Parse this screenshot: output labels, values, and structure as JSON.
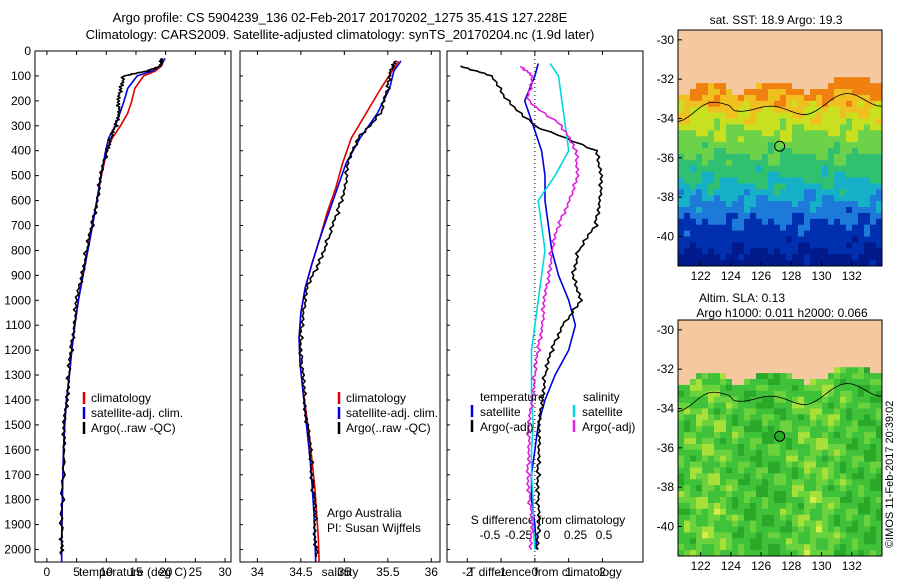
{
  "header": {
    "line1": "Argo profile: CS 5904239_136 02-Feb-2017 20170202_1275 35.41S 127.228E",
    "line2": "Climatology: CARS2009. Satellite-adjusted climatology: synTS_20170204.nc (1.9d later)"
  },
  "footer": {
    "vertical_label": "©IMOS 11-Feb-2017 20:39:02"
  },
  "colors": {
    "climatology": "#e00000",
    "satellite": "#0000e0",
    "argo": "#000000",
    "sal_satellite": "#00d8e0",
    "sal_argo": "#e020e0",
    "land": "#f5c8a0"
  },
  "chart_data": [
    {
      "type": "line",
      "title": "",
      "xlabel": "temperature (deg C)",
      "ylabel": "",
      "xlim": [
        -2,
        31
      ],
      "ylim": [
        2050,
        0
      ],
      "xticks": [
        0,
        5,
        10,
        15,
        20,
        25,
        30
      ],
      "yticks": [
        0,
        100,
        200,
        300,
        400,
        500,
        600,
        700,
        800,
        900,
        1000,
        1100,
        1200,
        1300,
        1400,
        1500,
        1600,
        1700,
        1800,
        1900,
        2000
      ],
      "legend": [
        "climatology",
        "satellite-adj. clim.",
        "Argo(..raw -QC)"
      ],
      "legend_position": "lower-center",
      "series": [
        {
          "name": "climatology",
          "color": "#e00000",
          "x": [
            19.8,
            19.3,
            18.3,
            16.3,
            14.8,
            14.3,
            13.6,
            12.4,
            11.0,
            10.1,
            9.2,
            8.4,
            7.6,
            6.8,
            6.0,
            5.3,
            4.7,
            4.2,
            3.8,
            3.3,
            3.0,
            2.8,
            2.6,
            2.5,
            2.5
          ],
          "y": [
            30,
            60,
            80,
            100,
            150,
            200,
            250,
            300,
            350,
            400,
            500,
            600,
            700,
            800,
            900,
            1000,
            1100,
            1200,
            1300,
            1400,
            1500,
            1600,
            1800,
            1950,
            2050
          ]
        },
        {
          "name": "satellite-adj. clim.",
          "color": "#0000e0",
          "x": [
            19.9,
            19.1,
            17.8,
            15.2,
            13.6,
            13.0,
            12.3,
            11.5,
            10.4,
            9.9,
            9.1,
            8.4,
            7.7,
            6.9,
            6.1,
            5.3,
            4.7,
            4.2,
            3.8,
            3.3,
            3.0,
            2.8,
            2.6,
            2.5,
            2.5
          ],
          "y": [
            30,
            60,
            80,
            100,
            150,
            200,
            250,
            300,
            350,
            400,
            500,
            600,
            700,
            800,
            900,
            1000,
            1100,
            1200,
            1300,
            1400,
            1500,
            1600,
            1800,
            1950,
            2050
          ]
        },
        {
          "name": "Argo(..raw -QC)",
          "color": "#000000",
          "x": [
            19.5,
            19.0,
            17.0,
            13.0,
            12.3,
            12.2,
            12.0,
            11.6,
            10.8,
            10.0,
            9.2,
            8.4,
            7.6,
            6.7,
            5.8,
            5.1,
            4.5,
            4.1,
            3.7,
            3.3,
            3.0,
            2.8,
            2.6,
            2.5,
            2.4
          ],
          "y": [
            30,
            60,
            80,
            100,
            150,
            200,
            250,
            300,
            350,
            400,
            500,
            600,
            700,
            800,
            900,
            1000,
            1100,
            1200,
            1300,
            1400,
            1500,
            1600,
            1800,
            1950,
            2020
          ]
        }
      ]
    },
    {
      "type": "line",
      "title": "",
      "xlabel": "salinity",
      "xlim": [
        33.8,
        36.1
      ],
      "ylim": [
        2050,
        0
      ],
      "xticks": [
        34,
        34.5,
        35,
        35.5,
        36
      ],
      "xticklabels": [
        "34",
        "34.5",
        "35",
        "35.5",
        "36"
      ],
      "legend": [
        "climatology",
        "satellite-adj. clim.",
        "Argo(..raw -QC)"
      ],
      "legend_position": "lower-center",
      "annotation": [
        "Argo Australia",
        "PI: Susan Wijffels"
      ],
      "series": [
        {
          "name": "climatology",
          "color": "#e00000",
          "x": [
            35.62,
            35.55,
            35.42,
            35.25,
            35.08,
            34.98,
            34.9,
            34.8,
            34.72,
            34.63,
            34.55,
            34.5,
            34.48,
            34.49,
            34.52,
            34.56,
            34.6,
            34.63,
            34.66,
            34.68,
            34.7,
            34.71
          ],
          "y": [
            40,
            80,
            150,
            250,
            350,
            450,
            550,
            650,
            750,
            850,
            950,
            1050,
            1150,
            1250,
            1350,
            1450,
            1550,
            1650,
            1750,
            1850,
            1950,
            2050
          ]
        },
        {
          "name": "satellite-adj. clim.",
          "color": "#0000e0",
          "x": [
            35.65,
            35.57,
            35.52,
            35.38,
            35.18,
            35.02,
            34.92,
            34.82,
            34.72,
            34.63,
            34.55,
            34.5,
            34.48,
            34.49,
            34.52,
            34.55,
            34.58,
            34.61,
            34.63,
            34.65,
            34.66,
            34.67
          ],
          "y": [
            40,
            80,
            150,
            250,
            350,
            450,
            550,
            650,
            750,
            850,
            950,
            1050,
            1150,
            1250,
            1350,
            1450,
            1550,
            1650,
            1750,
            1850,
            1950,
            2050
          ]
        },
        {
          "name": "Argo(..raw -QC)",
          "color": "#000000",
          "x": [
            35.6,
            35.52,
            35.5,
            35.42,
            35.15,
            35.05,
            35.0,
            34.92,
            34.82,
            34.7,
            34.58,
            34.52,
            34.5,
            34.51,
            34.53,
            34.56,
            34.59,
            34.62,
            34.64,
            34.66,
            34.67,
            34.68
          ],
          "y": [
            40,
            80,
            150,
            250,
            350,
            450,
            550,
            650,
            750,
            850,
            950,
            1050,
            1150,
            1250,
            1350,
            1450,
            1550,
            1650,
            1750,
            1850,
            1950,
            2030
          ]
        }
      ]
    },
    {
      "type": "line",
      "title": "",
      "xlabel": "T difference from climatology",
      "x2label": "S difference from climatology",
      "xlim": [
        -2.6,
        3.2
      ],
      "ylim": [
        2050,
        0
      ],
      "xticks": [
        -2,
        -1,
        0,
        1,
        2
      ],
      "x2ticks": [
        -0.5,
        -0.25,
        0,
        0.25,
        0.5
      ],
      "x2ticklabels": [
        "-0.5",
        "-0.25",
        "0",
        "0.25",
        "0.5"
      ],
      "legend_titles": [
        "temperature",
        "salinity"
      ],
      "legend": [
        "satellite",
        "Argo(-adj)",
        "satellite",
        "Argo(-adj)"
      ],
      "series": [
        {
          "name": "satellite",
          "group": "temperature",
          "color": "#0000e0",
          "x": [
            0.1,
            0.0,
            -0.3,
            -0.05,
            0.2,
            0.3,
            0.3,
            0.4,
            0.5,
            0.7,
            1.0,
            1.2,
            1.0,
            0.6,
            0.3,
            0.1,
            0.0,
            -0.1,
            -0.1,
            0.0,
            0.05
          ],
          "y": [
            50,
            100,
            200,
            300,
            400,
            500,
            600,
            700,
            800,
            900,
            1000,
            1100,
            1200,
            1300,
            1400,
            1500,
            1600,
            1700,
            1800,
            1900,
            2000
          ]
        },
        {
          "name": "Argo(-adj)",
          "group": "temperature",
          "color": "#000000",
          "x": [
            -2.2,
            -1.3,
            -0.8,
            0.0,
            1.8,
            2.0,
            1.9,
            1.8,
            1.3,
            1.1,
            1.4,
            0.8,
            0.5,
            0.3,
            0.2,
            0.15,
            0.1,
            0.1,
            0.1,
            0.1,
            0.1
          ],
          "y": [
            60,
            100,
            200,
            300,
            400,
            500,
            600,
            700,
            800,
            900,
            1000,
            1100,
            1200,
            1300,
            1400,
            1500,
            1600,
            1700,
            1800,
            1900,
            2000
          ]
        },
        {
          "name": "satellite",
          "group": "salinity",
          "color": "#00d8e0",
          "x": [
            0.45,
            0.7,
            0.8,
            0.9,
            1.0,
            0.6,
            0.1,
            0.2,
            0.3,
            0.2,
            0.1,
            0.0,
            -0.1,
            -0.1,
            -0.1,
            -0.05,
            -0.1,
            -0.1,
            -0.05,
            -0.05,
            0.0
          ],
          "y": [
            50,
            100,
            200,
            300,
            400,
            500,
            600,
            700,
            800,
            900,
            1000,
            1100,
            1200,
            1300,
            1400,
            1500,
            1600,
            1700,
            1800,
            1900,
            2000
          ]
        },
        {
          "name": "Argo(-adj)",
          "group": "salinity",
          "color": "#e020e0",
          "x": [
            -0.4,
            -0.1,
            -0.2,
            0.8,
            1.2,
            1.3,
            1.0,
            0.7,
            0.5,
            0.4,
            0.3,
            0.2,
            0.1,
            0.0,
            -0.1,
            -0.15,
            -0.2,
            -0.2,
            -0.15,
            -0.1,
            -0.1
          ],
          "y": [
            60,
            100,
            200,
            300,
            400,
            500,
            600,
            700,
            800,
            900,
            1000,
            1100,
            1200,
            1300,
            1400,
            1500,
            1600,
            1700,
            1800,
            1900,
            2000
          ]
        }
      ]
    },
    {
      "type": "heatmap",
      "title": "sat. SST: 18.9  Argo: 19.3",
      "xlim": [
        120.5,
        134
      ],
      "ylim": [
        -41.5,
        -29.5
      ],
      "xticks": [
        122,
        124,
        126,
        128,
        130,
        132
      ],
      "yticks": [
        -30,
        -32,
        -34,
        -36,
        -38,
        -40
      ],
      "marker": {
        "lon": 127.228,
        "lat": -35.41
      },
      "field": "sea surface temperature"
    },
    {
      "type": "heatmap",
      "title": "Altim. SLA: 0.13",
      "subtitle": "Argo h1000: 0.011  h2000: 0.066",
      "xlim": [
        120.5,
        134
      ],
      "ylim": [
        -41.5,
        -29.5
      ],
      "xticks": [
        122,
        124,
        126,
        128,
        130,
        132
      ],
      "yticks": [
        -30,
        -32,
        -34,
        -36,
        -38,
        -40
      ],
      "marker": {
        "lon": 127.228,
        "lat": -35.41
      },
      "field": "sea level anomaly"
    }
  ]
}
